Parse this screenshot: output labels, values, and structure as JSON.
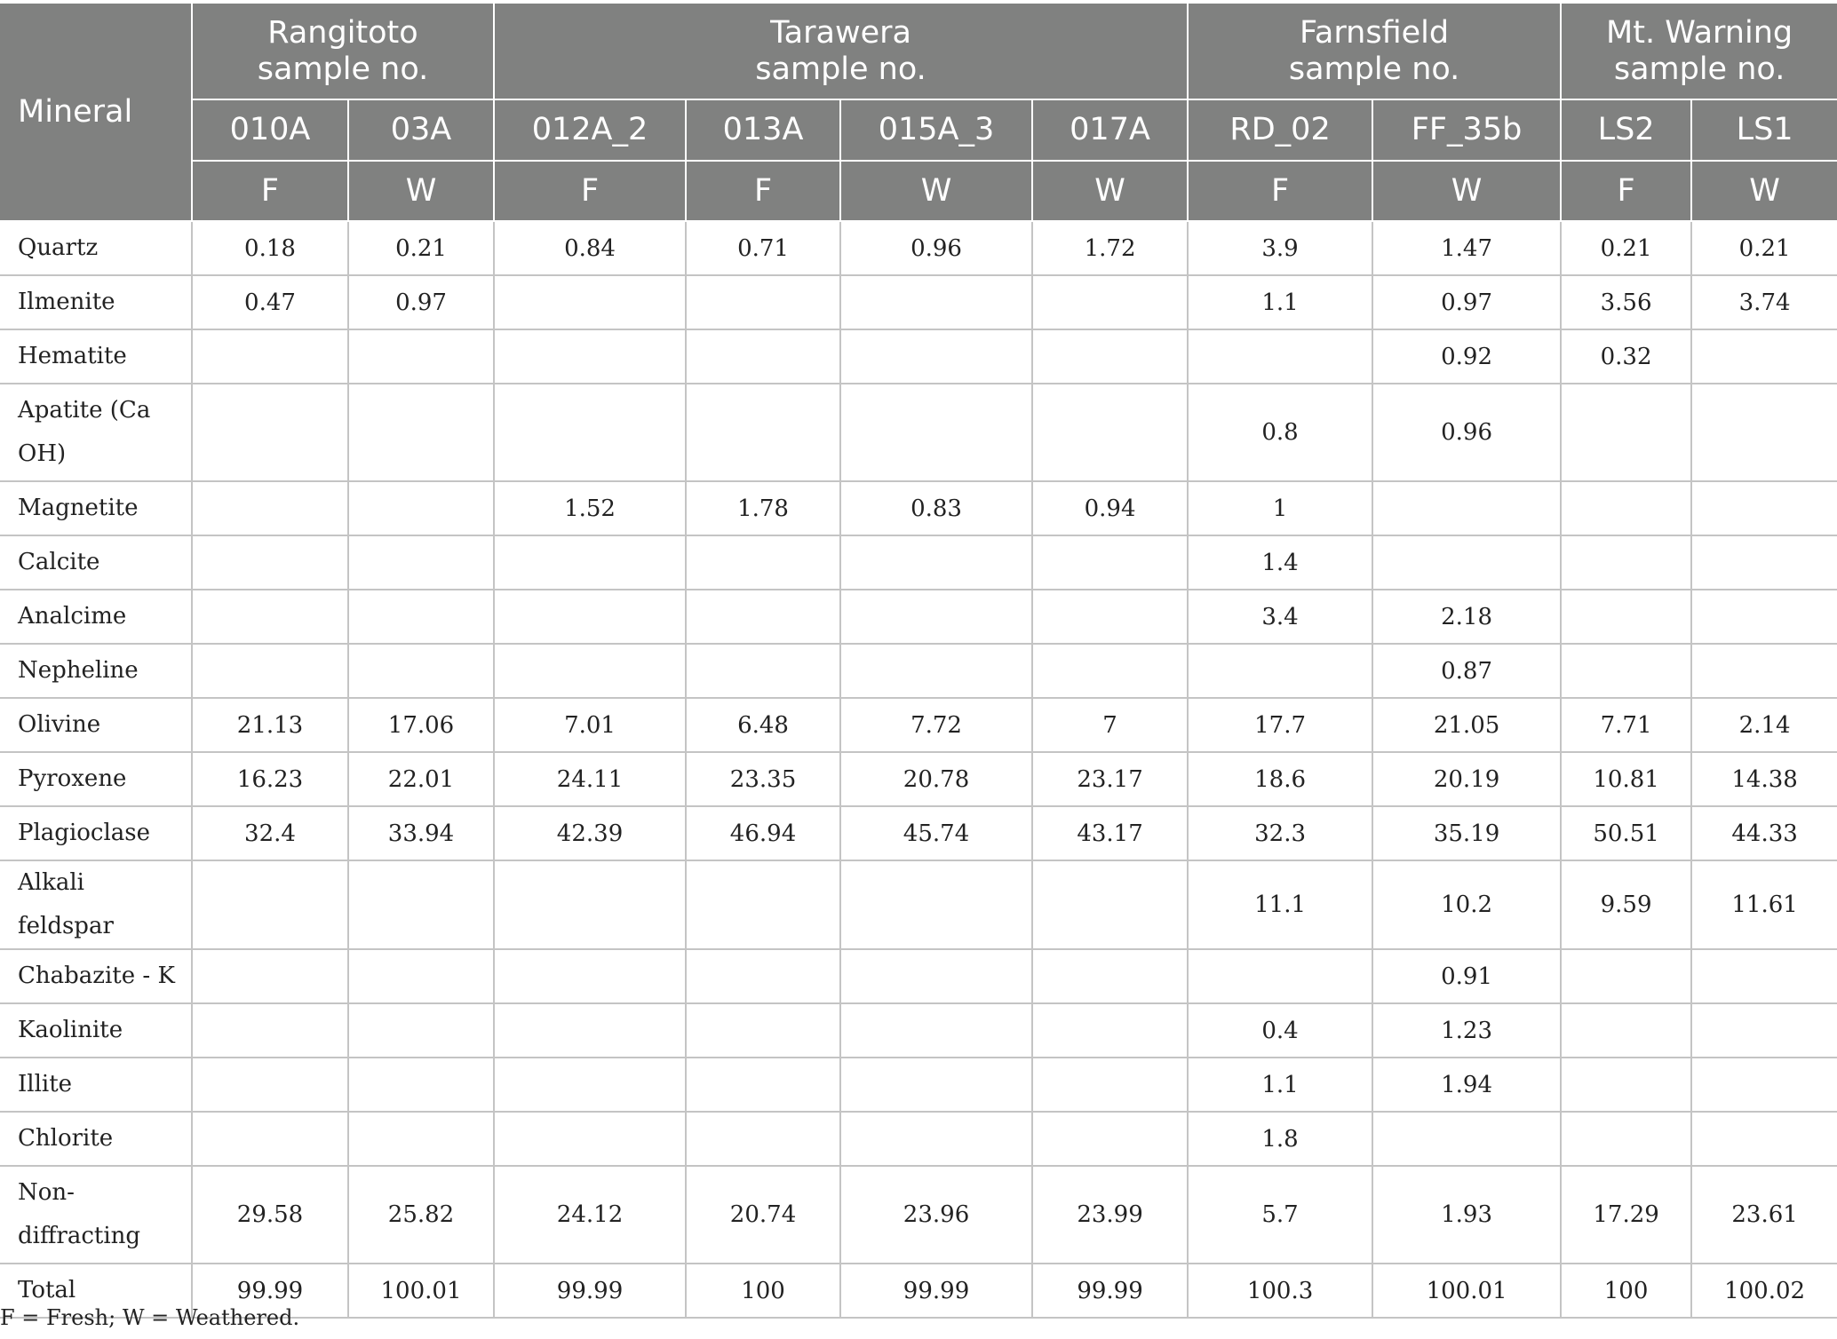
{
  "table": {
    "mineral_header": "Mineral",
    "sites": [
      {
        "name": "Rangitoto",
        "label": "sample no."
      },
      {
        "name": "Tarawera",
        "label": "sample no."
      },
      {
        "name": "Farnsfield",
        "label": "sample no."
      },
      {
        "name": "Mt. Warning",
        "label": "sample no."
      }
    ],
    "samples": [
      "010A",
      "03A",
      "012A_2",
      "013A",
      "015A_3",
      "017A",
      "RD_02",
      "FF_35b",
      "LS2",
      "LS1"
    ],
    "conditions": [
      "F",
      "W",
      "F",
      "F",
      "W",
      "W",
      "F",
      "W",
      "F",
      "W"
    ],
    "rows": [
      {
        "mineral": "Quartz",
        "values": [
          "0.18",
          "0.21",
          "0.84",
          "0.71",
          "0.96",
          "1.72",
          "3.9",
          "1.47",
          "0.21",
          "0.21"
        ]
      },
      {
        "mineral": "Ilmenite",
        "values": [
          "0.47",
          "0.97",
          "",
          "",
          "",
          "",
          "1.1",
          "0.97",
          "3.56",
          "3.74"
        ]
      },
      {
        "mineral": "Hematite",
        "values": [
          "",
          "",
          "",
          "",
          "",
          "",
          "",
          "0.92",
          "0.32",
          ""
        ]
      },
      {
        "mineral": "Apatite (Ca OH)",
        "values": [
          "",
          "",
          "",
          "",
          "",
          "",
          "0.8",
          "0.96",
          "",
          ""
        ]
      },
      {
        "mineral": "Magnetite",
        "values": [
          "",
          "",
          "1.52",
          "1.78",
          "0.83",
          "0.94",
          "1",
          "",
          "",
          ""
        ]
      },
      {
        "mineral": "Calcite",
        "values": [
          "",
          "",
          "",
          "",
          "",
          "",
          "1.4",
          "",
          "",
          ""
        ]
      },
      {
        "mineral": "Analcime",
        "values": [
          "",
          "",
          "",
          "",
          "",
          "",
          "3.4",
          "2.18",
          "",
          ""
        ]
      },
      {
        "mineral": "Nepheline",
        "values": [
          "",
          "",
          "",
          "",
          "",
          "",
          "",
          "0.87",
          "",
          ""
        ]
      },
      {
        "mineral": "Olivine",
        "values": [
          "21.13",
          "17.06",
          "7.01",
          "6.48",
          "7.72",
          "7",
          "17.7",
          "21.05",
          "7.71",
          "2.14"
        ]
      },
      {
        "mineral": "Pyroxene",
        "values": [
          "16.23",
          "22.01",
          "24.11",
          "23.35",
          "20.78",
          "23.17",
          "18.6",
          "20.19",
          "10.81",
          "14.38"
        ]
      },
      {
        "mineral": "Plagioclase",
        "values": [
          "32.4",
          "33.94",
          "42.39",
          "46.94",
          "45.74",
          "43.17",
          "32.3",
          "35.19",
          "50.51",
          "44.33"
        ]
      },
      {
        "mineral": "Alkali feldspar",
        "values": [
          "",
          "",
          "",
          "",
          "",
          "",
          "11.1",
          "10.2",
          "9.59",
          "11.61"
        ]
      },
      {
        "mineral": "Chabazite - K",
        "values": [
          "",
          "",
          "",
          "",
          "",
          "",
          "",
          "0.91",
          "",
          ""
        ]
      },
      {
        "mineral": "Kaolinite",
        "values": [
          "",
          "",
          "",
          "",
          "",
          "",
          "0.4",
          "1.23",
          "",
          ""
        ]
      },
      {
        "mineral": "Illite",
        "values": [
          "",
          "",
          "",
          "",
          "",
          "",
          "1.1",
          "1.94",
          "",
          ""
        ]
      },
      {
        "mineral": "Chlorite",
        "values": [
          "",
          "",
          "",
          "",
          "",
          "",
          "1.8",
          "",
          "",
          ""
        ]
      },
      {
        "mineral": "Non-diffracting",
        "values": [
          "29.58",
          "25.82",
          "24.12",
          "20.74",
          "23.96",
          "23.99",
          "5.7",
          "1.93",
          "17.29",
          "23.61"
        ]
      },
      {
        "mineral": "Total",
        "values": [
          "99.99",
          "100.01",
          "99.99",
          "100",
          "99.99",
          "99.99",
          "100.3",
          "100.01",
          "100",
          "100.02"
        ]
      }
    ]
  },
  "footnote": "F = Fresh; W = Weathered.",
  "colors": {
    "header_bg": "#808180",
    "header_text": "#ffffff",
    "grid": "#c4c4c4"
  }
}
